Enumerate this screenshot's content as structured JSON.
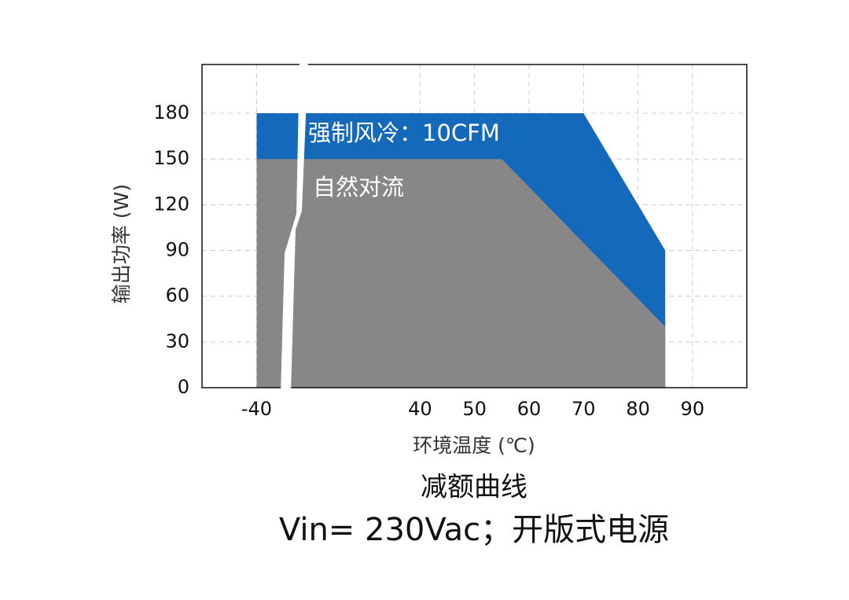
{
  "chart_data": {
    "type": "area",
    "title": "减额曲线",
    "subtitle": "Vin= 230Vac；开版式电源",
    "x_label": "环境温度 (℃)",
    "y_label": "输出功率 (W)",
    "xlim": [
      -50,
      100
    ],
    "xbreak": [
      -33,
      17
    ],
    "xticks": [
      -40,
      40,
      50,
      60,
      70,
      80,
      90
    ],
    "ylim": [
      0,
      212
    ],
    "yticks": [
      0,
      30,
      60,
      90,
      120,
      150,
      180
    ],
    "grid": true,
    "series": [
      {
        "name": "强制风冷：10CFM",
        "color": "#1469bb",
        "x": [
          -40,
          70,
          85
        ],
        "values": [
          180,
          180,
          90
        ]
      },
      {
        "name": "自然对流",
        "color": "#878787",
        "x": [
          -40,
          55,
          85
        ],
        "values": [
          150,
          150,
          40
        ]
      }
    ]
  }
}
